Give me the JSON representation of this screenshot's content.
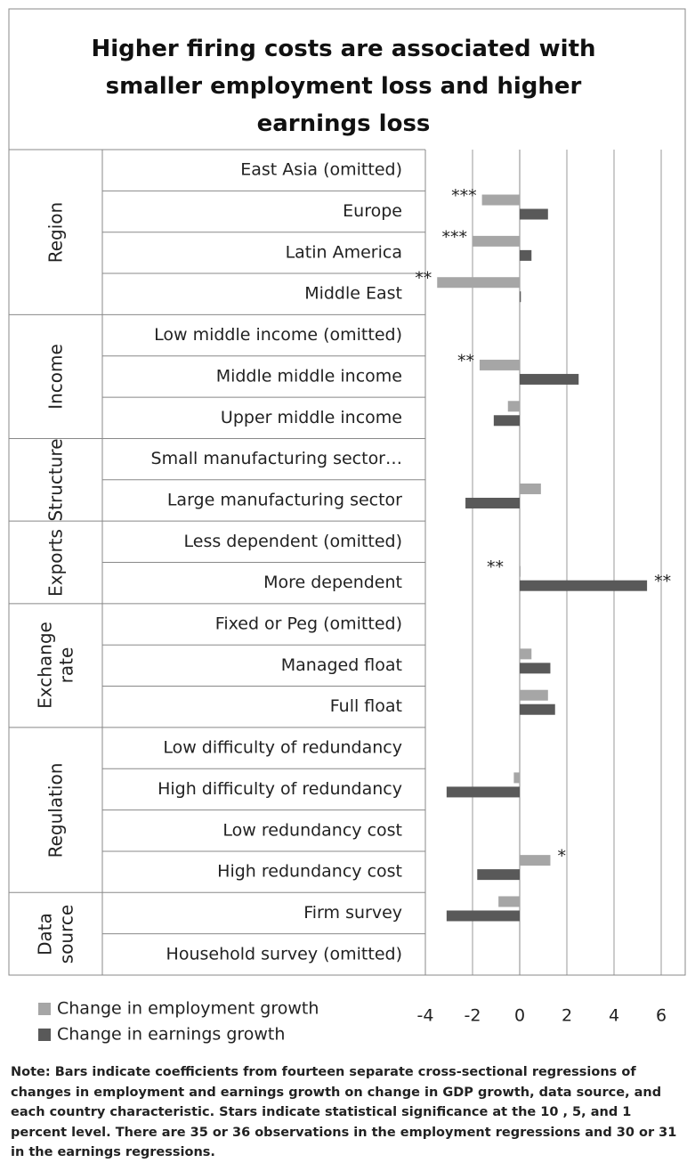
{
  "chart_data": {
    "type": "bar",
    "orientation": "horizontal",
    "title": "Higher firing costs are associated with smaller employment loss and higher earnings loss",
    "groups": [
      {
        "label": "Region",
        "categories": [
          "East Asia (omitted)",
          "Europe",
          "Latin America",
          "Middle East"
        ]
      },
      {
        "label": "Income",
        "categories": [
          "Low middle income (omitted)",
          "Middle middle income",
          "Upper middle income"
        ]
      },
      {
        "label": "Structure",
        "categories": [
          "Small manufacturing sector…",
          "Large manufacturing sector"
        ]
      },
      {
        "label": "Exports",
        "categories": [
          "Less dependent  (omitted)",
          "More dependent"
        ]
      },
      {
        "label": "Exchange rate",
        "categories": [
          "Fixed or Peg (omitted)",
          "Managed float",
          "Full float"
        ]
      },
      {
        "label": "Regulation",
        "categories": [
          "Low difficulty of redundancy",
          "High difficulty of redundancy",
          "Low redundancy cost",
          "High redundancy cost"
        ]
      },
      {
        "label": "Data source",
        "categories": [
          "Firm survey",
          "Household survey (omitted)"
        ]
      }
    ],
    "series": [
      {
        "name": "Change in employment growth",
        "color": "#a6a6a6",
        "values": [
          null,
          -1.6,
          -2.0,
          -3.5,
          null,
          -1.7,
          -0.5,
          null,
          0.9,
          null,
          0,
          null,
          0.5,
          1.2,
          null,
          -0.25,
          null,
          1.3,
          -0.9,
          null
        ],
        "significance": [
          null,
          "***",
          "***",
          "**",
          null,
          "**",
          null,
          null,
          null,
          null,
          "**",
          null,
          null,
          null,
          null,
          null,
          null,
          "*",
          null,
          null
        ]
      },
      {
        "name": "Change in earnings growth",
        "color": "#595959",
        "values": [
          null,
          1.2,
          0.5,
          0.05,
          null,
          2.5,
          -1.1,
          null,
          -2.3,
          null,
          5.4,
          null,
          1.3,
          1.5,
          null,
          -3.1,
          null,
          -1.8,
          -3.1,
          null
        ],
        "significance": [
          null,
          null,
          null,
          null,
          null,
          null,
          null,
          null,
          null,
          null,
          "**",
          null,
          null,
          null,
          null,
          null,
          null,
          null,
          null,
          null
        ]
      }
    ],
    "xlim": [
      -4,
      6
    ],
    "xticks": [
      -4,
      -2,
      0,
      2,
      4,
      6
    ],
    "grid": true,
    "note": "Note: Bars indicate coefficients from fourteen separate  cross-sectional regressions of  changes in employment and earnings growth on change in GDP growth, data source, and each country characteristic. Stars indicate statistical significance at the 10 , 5, and 1 percent level.  There  are 35 or 36 observations in the employment regressions and 30 or 31 in the earnings regressions."
  }
}
